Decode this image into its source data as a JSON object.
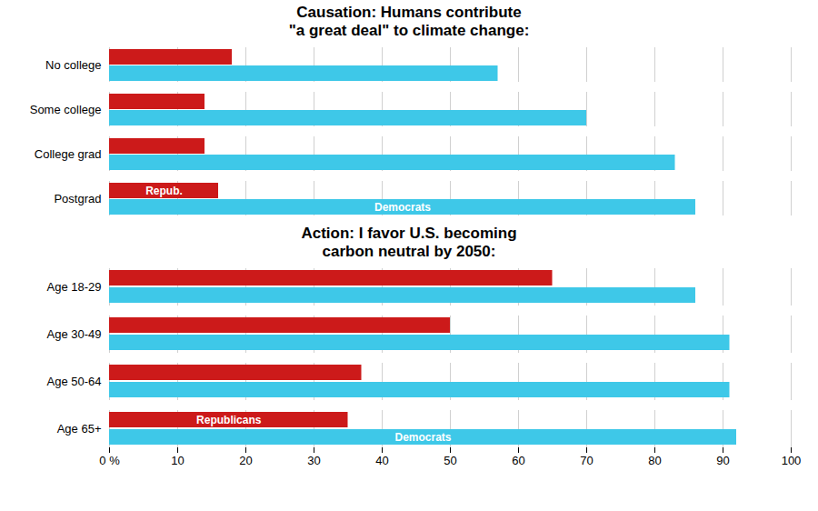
{
  "chart_data": [
    {
      "type": "bar",
      "orientation": "horizontal",
      "title": "Causation: Humans contribute\n\"a great deal\" to climate change:",
      "categories": [
        "No college",
        "Some college",
        "College grad",
        "Postgrad"
      ],
      "series": [
        {
          "name": "Repub.",
          "color": "#cc1a1a",
          "values": [
            18,
            14,
            14,
            16
          ]
        },
        {
          "name": "Democrats",
          "color": "#3ec8e8",
          "values": [
            57,
            70,
            83,
            86
          ]
        }
      ],
      "xlim": [
        0,
        100
      ],
      "xticks": [
        {
          "value": 0,
          "label": "0 %"
        },
        10,
        20,
        30,
        40,
        50,
        60,
        70,
        80,
        90,
        100
      ],
      "grid": true,
      "tick_labels": "y"
    },
    {
      "type": "bar",
      "orientation": "horizontal",
      "title": "Action: I favor U.S. becoming\ncarbon neutral by 2050:",
      "categories": [
        "Age 18-29",
        "Age 30-49",
        "Age 50-64",
        "Age 65+"
      ],
      "series": [
        {
          "name": "Republicans",
          "color": "#cc1a1a",
          "values": [
            65,
            50,
            37,
            35
          ]
        },
        {
          "name": "Democrats",
          "color": "#3ec8e8",
          "values": [
            86,
            91,
            91,
            92
          ]
        }
      ],
      "xlim": [
        0,
        100
      ],
      "xticks": [
        {
          "value": 0,
          "label": "0 %"
        },
        10,
        20,
        30,
        40,
        50,
        60,
        70,
        80,
        90,
        100
      ],
      "grid": true
    }
  ]
}
